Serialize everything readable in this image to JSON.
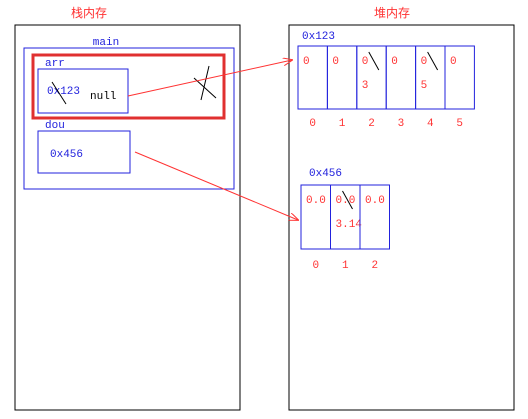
{
  "stack": {
    "title": "栈内存",
    "frame_label": "main",
    "arr": {
      "name": "arr",
      "old_value": "0x123",
      "new_value": "null"
    },
    "dou": {
      "name": "dou",
      "value": "0x456"
    }
  },
  "heap": {
    "title": "堆内存",
    "int_array": {
      "address": "0x123",
      "cells": [
        "0",
        "0",
        "0",
        "0",
        "0",
        "0"
      ],
      "new_values": [
        "",
        "",
        "3",
        "",
        "5",
        ""
      ],
      "indices": [
        "0",
        "1",
        "2",
        "3",
        "4",
        "5"
      ]
    },
    "double_array": {
      "address": "0x456",
      "cells": [
        "0.0",
        "0.0",
        "0.0"
      ],
      "new_values": [
        "",
        "3.14",
        ""
      ],
      "indices": [
        "0",
        "1",
        "2"
      ]
    }
  },
  "colors": {
    "annotation": "#ff3333",
    "structure": "#2222dd",
    "ink": "#000000",
    "highlight": "#e03030"
  }
}
